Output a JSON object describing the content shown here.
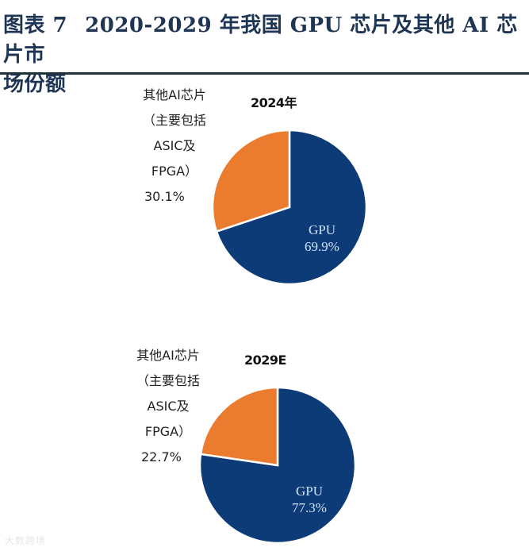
{
  "title": {
    "figure_no": "图表 7",
    "line1": "2020-2029 年我国 GPU 芯片及其他 AI 芯片市",
    "line2": "场份额"
  },
  "colors": {
    "gpu": "#0d3b78",
    "other": "#eb7c2f",
    "title": "#1f3554"
  },
  "charts": [
    {
      "year": "2024年",
      "other_label_lines": [
        "其他AI芯片",
        "（主要包括",
        "ASIC及",
        "FPGA）",
        "30.1%"
      ],
      "gpu_label": "GPU",
      "gpu_pct": "69.9%"
    },
    {
      "year": "2029E",
      "other_label_lines": [
        "其他AI芯片",
        "（主要包括",
        "ASIC及",
        "FPGA）",
        "22.7%"
      ],
      "gpu_label": "GPU",
      "gpu_pct": "77.3%"
    }
  ],
  "watermark": "大数跨境",
  "chart_data": [
    {
      "type": "pie",
      "title": "2024年",
      "categories": [
        "GPU",
        "其他AI芯片（主要包括ASIC及FPGA）"
      ],
      "values": [
        69.9,
        30.1
      ],
      "unit": "%"
    },
    {
      "type": "pie",
      "title": "2029E",
      "categories": [
        "GPU",
        "其他AI芯片（主要包括ASIC及FPGA）"
      ],
      "values": [
        77.3,
        22.7
      ],
      "unit": "%"
    }
  ]
}
